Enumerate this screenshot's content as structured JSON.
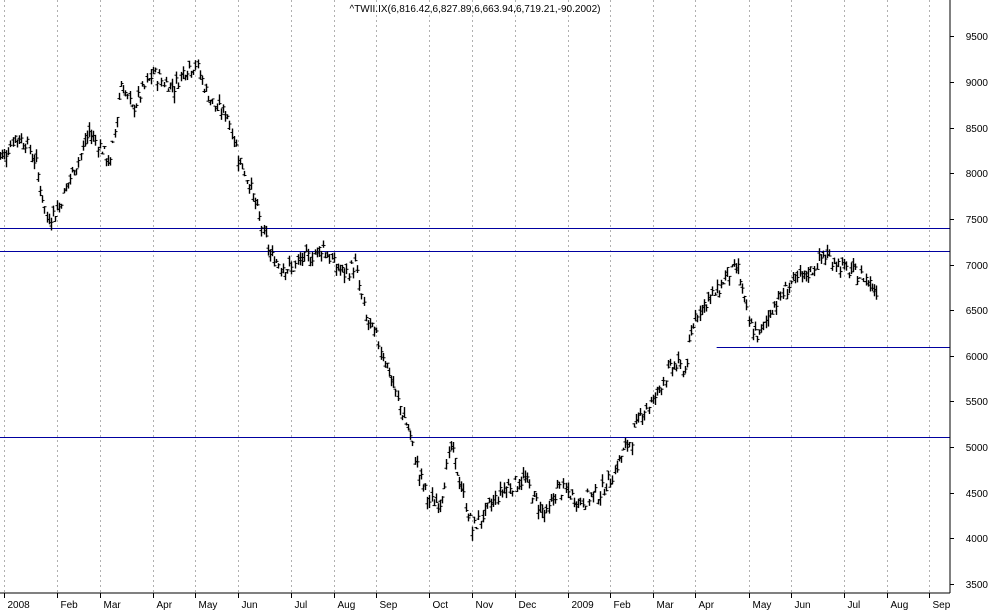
{
  "colors": {
    "background": "#ffffff",
    "bars": "#000000",
    "support_lines": "#0000a0",
    "grid": "#b0b0b0"
  },
  "chart_data": {
    "type": "ohlc",
    "title": "^TWII.IX(6,816.42,6,827.89,6,663.94,6,719.21,-90.2002)",
    "y_axis_side": "right",
    "ylim": [
      3400,
      9900
    ],
    "y_ticks": [
      3500,
      4000,
      4500,
      5000,
      5500,
      6000,
      6500,
      7000,
      7500,
      8000,
      8500,
      9000,
      9500
    ],
    "grid": "vertical-dotted",
    "x_labels": [
      {
        "label": "2008",
        "week": 0
      },
      {
        "label": "Feb",
        "week": 5
      },
      {
        "label": "Mar",
        "week": 9
      },
      {
        "label": "Apr",
        "week": 14
      },
      {
        "label": "May",
        "week": 18
      },
      {
        "label": "Jun",
        "week": 22
      },
      {
        "label": "Jul",
        "week": 27
      },
      {
        "label": "Aug",
        "week": 31
      },
      {
        "label": "Sep",
        "week": 35
      },
      {
        "label": "Oct",
        "week": 40
      },
      {
        "label": "Nov",
        "week": 44
      },
      {
        "label": "Dec",
        "week": 48
      },
      {
        "label": "2009",
        "week": 53
      },
      {
        "label": "Feb",
        "week": 57
      },
      {
        "label": "Mar",
        "week": 61
      },
      {
        "label": "Apr",
        "week": 65
      },
      {
        "label": "May",
        "week": 70
      },
      {
        "label": "Jun",
        "week": 74
      },
      {
        "label": "Jul",
        "week": 79
      },
      {
        "label": "Aug",
        "week": 83
      },
      {
        "label": "Sep",
        "week": 87
      }
    ],
    "weeks_total": 88,
    "series": [
      {
        "values": [
          8200,
          8400,
          8350,
          8100,
          7500,
          7600,
          7900,
          8150,
          8450,
          8300,
          8100,
          9000,
          8700,
          8900,
          9100,
          9000,
          8950,
          9150,
          9200,
          8900,
          8700,
          8650,
          8200,
          7900,
          7500,
          7100,
          7000,
          6950,
          7050,
          7100,
          7200,
          7000,
          6900,
          7000,
          6400,
          6200,
          5900,
          5500,
          5200,
          4700,
          4400,
          4400,
          5000,
          4550,
          4100,
          4250,
          4400,
          4550,
          4600,
          4650,
          4400,
          4250,
          4550,
          4500,
          4400,
          4450,
          4500,
          4650,
          4900,
          5100,
          5400,
          5500,
          5750,
          5900,
          5850,
          6450,
          6600,
          6700,
          6900,
          6950,
          6350,
          6200,
          6500,
          6650,
          6800,
          6850,
          6950,
          7100,
          7050,
          6950,
          6900,
          6850,
          6719.21
        ]
      }
    ],
    "horizontal_lines": [
      {
        "value": 7400,
        "from_week": 0
      },
      {
        "value": 7150,
        "from_week": 0
      },
      {
        "value": 5110,
        "from_week": 0
      },
      {
        "value": 6100,
        "from_week": 67
      }
    ]
  }
}
